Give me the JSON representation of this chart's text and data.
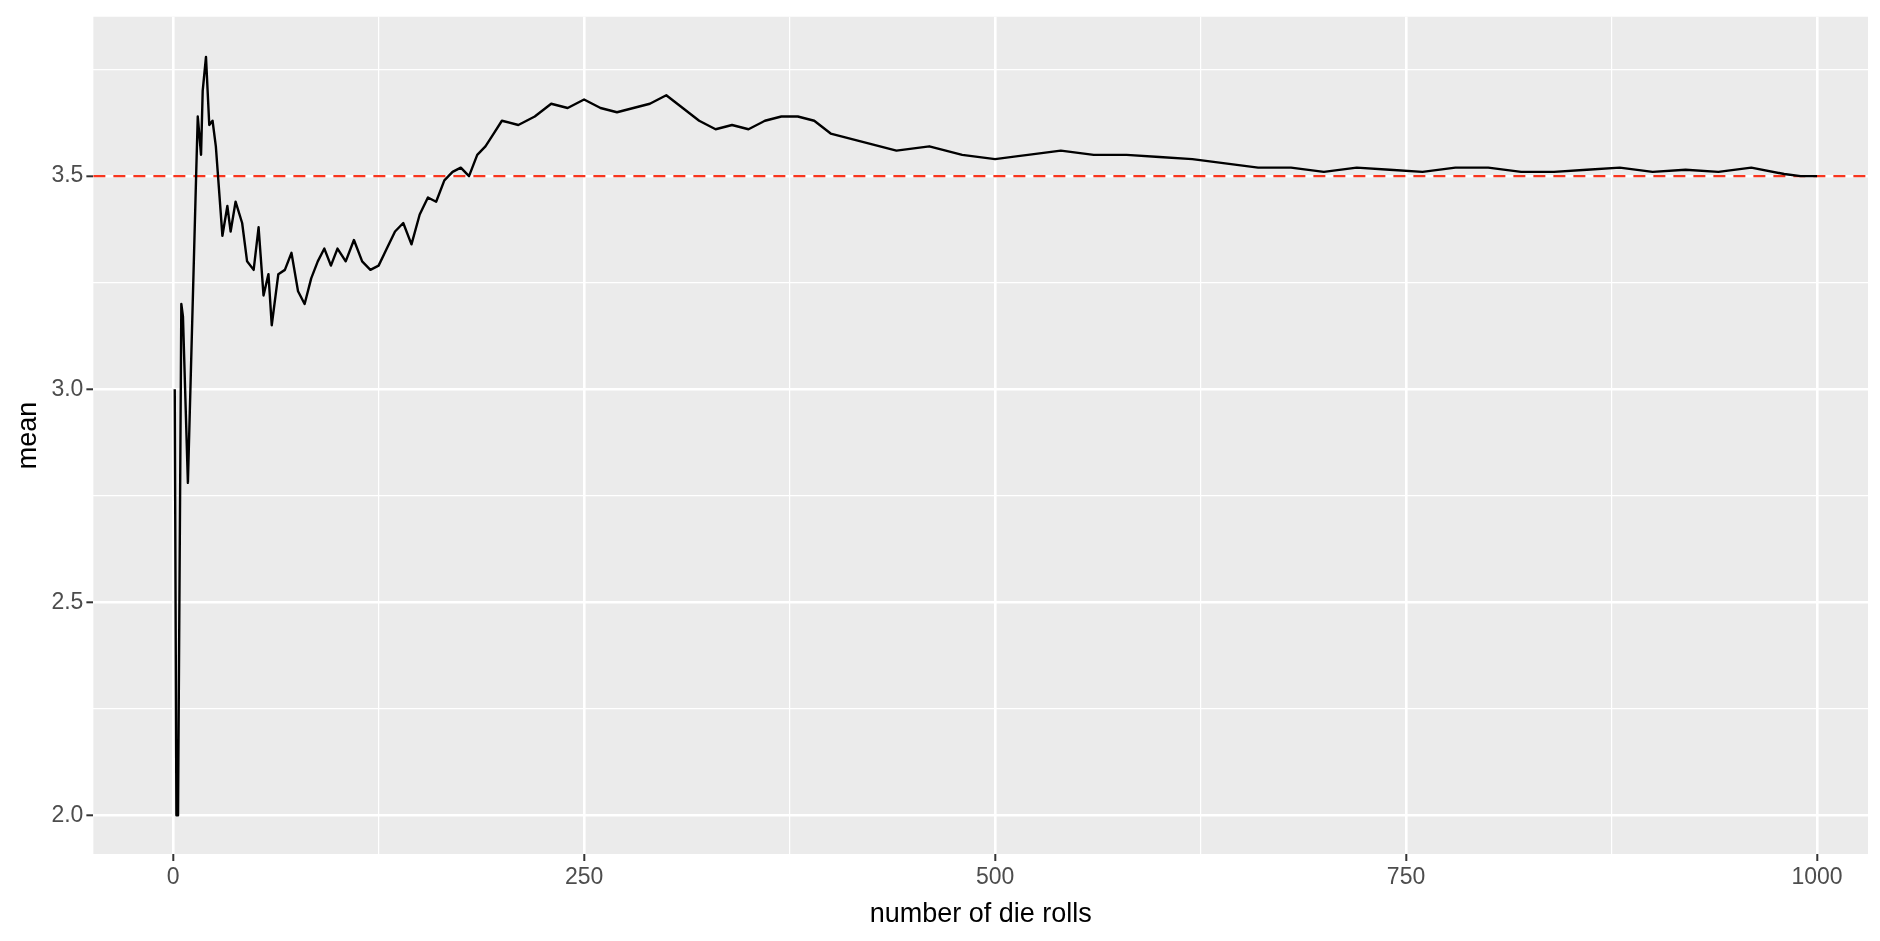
{
  "chart_data": {
    "type": "line",
    "xlabel": "number of die rolls",
    "ylabel": "mean",
    "x": [
      1,
      2,
      3,
      5,
      6,
      9,
      14,
      15,
      17,
      18,
      20,
      22,
      24,
      26,
      30,
      33,
      35,
      38,
      42,
      45,
      49,
      52,
      55,
      58,
      60,
      64,
      68,
      72,
      76,
      80,
      84,
      88,
      92,
      96,
      100,
      105,
      110,
      115,
      120,
      125,
      130,
      135,
      140,
      145,
      150,
      155,
      160,
      165,
      170,
      175,
      180,
      185,
      190,
      195,
      200,
      210,
      220,
      230,
      240,
      250,
      260,
      270,
      280,
      290,
      300,
      310,
      320,
      330,
      340,
      350,
      360,
      370,
      380,
      390,
      400,
      410,
      420,
      440,
      460,
      480,
      500,
      520,
      540,
      560,
      580,
      600,
      620,
      640,
      660,
      680,
      700,
      720,
      740,
      760,
      780,
      800,
      820,
      840,
      860,
      880,
      900,
      920,
      940,
      960,
      980,
      990,
      1000
    ],
    "series": [
      {
        "color": "#000000",
        "values": [
          3.0,
          2.0,
          2.0,
          3.2,
          3.17,
          2.78,
          3.5,
          3.64,
          3.55,
          3.7,
          3.78,
          3.62,
          3.63,
          3.57,
          3.36,
          3.43,
          3.37,
          3.44,
          3.39,
          3.3,
          3.28,
          3.38,
          3.22,
          3.27,
          3.15,
          3.27,
          3.28,
          3.32,
          3.23,
          3.2,
          3.26,
          3.3,
          3.33,
          3.29,
          3.33,
          3.3,
          3.35,
          3.3,
          3.28,
          3.29,
          3.33,
          3.37,
          3.39,
          3.34,
          3.41,
          3.45,
          3.44,
          3.49,
          3.51,
          3.52,
          3.5,
          3.55,
          3.57,
          3.6,
          3.63,
          3.62,
          3.64,
          3.67,
          3.66,
          3.68,
          3.66,
          3.65,
          3.66,
          3.67,
          3.69,
          3.66,
          3.63,
          3.61,
          3.62,
          3.61,
          3.63,
          3.64,
          3.64,
          3.63,
          3.6,
          3.59,
          3.58,
          3.56,
          3.57,
          3.55,
          3.54,
          3.55,
          3.56,
          3.55,
          3.55,
          3.545,
          3.54,
          3.53,
          3.52,
          3.52,
          3.51,
          3.52,
          3.515,
          3.51,
          3.52,
          3.52,
          3.51,
          3.51,
          3.515,
          3.52,
          3.51,
          3.515,
          3.51,
          3.52,
          3.505,
          3.5,
          3.5
        ]
      }
    ],
    "xlim": [
      -48.5,
      1031
    ],
    "ylim": [
      1.909,
      3.874
    ],
    "xticks": [
      0,
      {
        "value": 125,
        "label": null
      },
      250,
      {
        "value": 375,
        "label": null
      },
      500,
      {
        "value": 625,
        "label": null
      },
      750,
      {
        "value": 875,
        "label": null
      },
      1000
    ],
    "yticks": [
      {
        "value": 2,
        "label": "2.0"
      },
      {
        "value": 2.25,
        "label": null
      },
      {
        "value": 2.5,
        "label": "2.5"
      },
      {
        "value": 2.75,
        "label": null
      },
      {
        "value": 3,
        "label": "3.0"
      },
      {
        "value": 3.25,
        "label": null
      },
      {
        "value": 3.5,
        "label": "3.5"
      },
      {
        "value": 3.75,
        "label": null
      }
    ],
    "ref_lines": [
      {
        "axis": "y",
        "value": 3.5,
        "color": "#f8361f",
        "line_style": "dashed"
      }
    ],
    "grid": true,
    "legend": false,
    "marker": "none",
    "line_style": "solid"
  }
}
